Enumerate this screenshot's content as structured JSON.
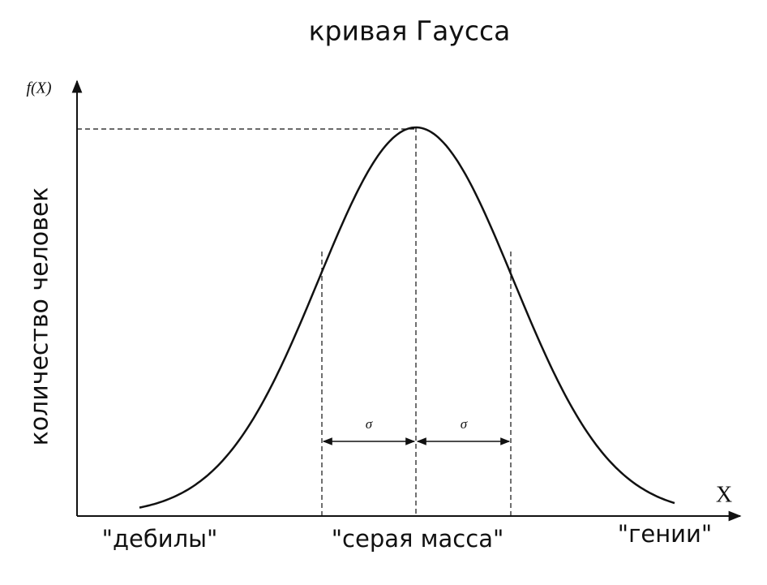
{
  "title": "кривая Гаусса",
  "y_axis": {
    "symbol": "f(X)",
    "label": "количество человек"
  },
  "x_axis": {
    "symbol": "X"
  },
  "sigma_labels": [
    "σ",
    "σ"
  ],
  "regions": [
    "\"дебилы\"",
    "\"серая масса\"",
    "\"гении\""
  ]
}
